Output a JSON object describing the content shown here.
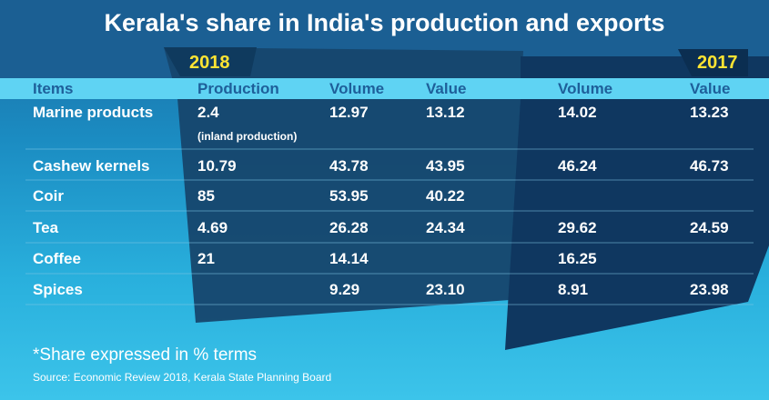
{
  "title": "Kerala's share in India's production and exports",
  "year_left": "2018",
  "year_right": "2017",
  "headers": [
    "Items",
    "Production",
    "Volume",
    "Value",
    "Volume",
    "Value"
  ],
  "rows": [
    {
      "item": "Marine products",
      "production": "2.4",
      "production_note": "(inland production)",
      "volume_2018": "12.97",
      "value_2018": "13.12",
      "volume_2017": "14.02",
      "value_2017": "13.23"
    },
    {
      "item": "Cashew kernels",
      "production": "10.79",
      "production_note": "",
      "volume_2018": "43.78",
      "value_2018": "43.95",
      "volume_2017": "46.24",
      "value_2017": "46.73"
    },
    {
      "item": "Coir",
      "production": "85",
      "production_note": "",
      "volume_2018": "53.95",
      "value_2018": "40.22",
      "volume_2017": "",
      "value_2017": ""
    },
    {
      "item": "Tea",
      "production": "4.69",
      "production_note": "",
      "volume_2018": "26.28",
      "value_2018": "24.34",
      "volume_2017": "29.62",
      "value_2017": "24.59"
    },
    {
      "item": "Coffee",
      "production": "21",
      "production_note": "",
      "volume_2018": "14.14",
      "value_2018": "",
      "volume_2017": "16.25",
      "value_2017": ""
    },
    {
      "item": "Spices",
      "production": "",
      "production_note": "",
      "volume_2018": "9.29",
      "value_2018": "23.10",
      "volume_2017": "8.91",
      "value_2017": "23.98"
    }
  ],
  "footnote": "*Share expressed in % terms",
  "source": "Source: Economic Review 2018, Kerala State Planning Board",
  "colors": {
    "header_band": "#5fd3f3",
    "header_text": "#1e5f9a",
    "year_text": "#ffe433",
    "panel_2018": "#15476f",
    "panel_2017": "#0f3960",
    "text": "#ffffff"
  },
  "chart_data": {
    "type": "table",
    "title": "Kerala's share in India's production and exports",
    "column_groups": [
      {
        "name": "2018",
        "columns": [
          "Production",
          "Volume",
          "Value"
        ]
      },
      {
        "name": "2017",
        "columns": [
          "Volume",
          "Value"
        ]
      }
    ],
    "columns": [
      "Items",
      "Production",
      "Volume",
      "Value",
      "Volume",
      "Value"
    ],
    "rows": [
      [
        "Marine products",
        2.4,
        12.97,
        13.12,
        14.02,
        13.23
      ],
      [
        "Cashew kernels",
        10.79,
        43.78,
        43.95,
        46.24,
        46.73
      ],
      [
        "Coir",
        85,
        53.95,
        40.22,
        null,
        null
      ],
      [
        "Tea",
        4.69,
        26.28,
        24.34,
        29.62,
        24.59
      ],
      [
        "Coffee",
        21,
        14.14,
        null,
        16.25,
        null
      ],
      [
        "Spices",
        null,
        9.29,
        23.1,
        8.91,
        23.98
      ]
    ]
  }
}
